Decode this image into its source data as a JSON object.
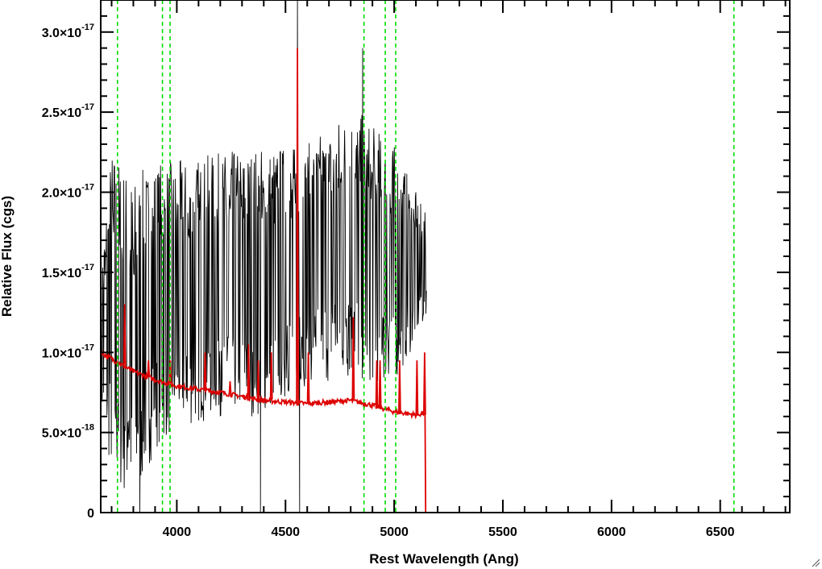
{
  "chart_data": {
    "type": "line",
    "xlabel": "Rest Wavelength (Ang)",
    "ylabel": "Relative Flux (cgs)",
    "xlim": [
      3650,
      6820
    ],
    "ylim": [
      0,
      3.2e-17
    ],
    "x_ticks": [
      {
        "value": 4000,
        "label": "4000"
      },
      {
        "value": 4500,
        "label": "4500"
      },
      {
        "value": 5000,
        "label": "5000"
      },
      {
        "value": 5500,
        "label": "5500"
      },
      {
        "value": 6000,
        "label": "6000"
      },
      {
        "value": 6500,
        "label": "6500"
      }
    ],
    "y_ticks": [
      {
        "value": 0,
        "mantissa": "0",
        "exp": ""
      },
      {
        "value": 5e-18,
        "mantissa": "5.0×10",
        "exp": "-18"
      },
      {
        "value": 1e-17,
        "mantissa": "1.0×10",
        "exp": "-17"
      },
      {
        "value": 1.5e-17,
        "mantissa": "1.5×10",
        "exp": "-17"
      },
      {
        "value": 2e-17,
        "mantissa": "2.0×10",
        "exp": "-17"
      },
      {
        "value": 2.5e-17,
        "mantissa": "2.5×10",
        "exp": "-17"
      },
      {
        "value": 3e-17,
        "mantissa": "3.0×10",
        "exp": "-17"
      }
    ],
    "grid": false,
    "vlines": {
      "color": "#00dd00",
      "style": "dashed",
      "x": [
        3727,
        3934,
        3969,
        4861,
        4959,
        5007,
        6563
      ]
    },
    "series": [
      {
        "color": "#000000",
        "style": "noisy spectrum",
        "x_range": [
          3650,
          5150
        ],
        "envelope_x": [
          3650,
          3700,
          3800,
          3900,
          4000,
          4200,
          4400,
          4600,
          4800,
          5000,
          5150
        ],
        "envelope_low": [
          6e-18,
          2e-18,
          0.0,
          4e-18,
          5e-18,
          6e-18,
          6e-18,
          8e-18,
          8e-18,
          8e-18,
          1.2e-17
        ],
        "envelope_high": [
          1.6e-17,
          2.3e-17,
          2.1e-17,
          2.2e-17,
          2.2e-17,
          2.25e-17,
          2.3e-17,
          2.3e-17,
          2.55e-17,
          2.3e-17,
          1.85e-17
        ],
        "spikes": [
          {
            "x": 3830,
            "y": 0.0
          },
          {
            "x": 4385,
            "y": 0.0
          },
          {
            "x": 4555,
            "y": 3.2e-17
          },
          {
            "x": 4565,
            "y": 0.0
          },
          {
            "x": 4855,
            "y": 2.9e-17
          }
        ]
      },
      {
        "color": "#dd0000",
        "style": "model spectrum",
        "continuum_x": [
          3650,
          3800,
          3900,
          4000,
          4200,
          4400,
          4600,
          4800,
          4900,
          5000,
          5100,
          5140,
          5145,
          6820
        ],
        "continuum_y": [
          1e-17,
          8.8e-18,
          8.3e-18,
          7.9e-18,
          7.5e-18,
          7e-18,
          6.8e-18,
          7e-18,
          6.7e-18,
          6.3e-18,
          6.1e-18,
          6.2e-18,
          0.0,
          0.0
        ],
        "lines": [
          {
            "x": 3760,
            "y": 1.3e-17
          },
          {
            "x": 3870,
            "y": 9.5e-18
          },
          {
            "x": 3970,
            "y": 9.5e-18
          },
          {
            "x": 4130,
            "y": 1e-17
          },
          {
            "x": 4245,
            "y": 8.2e-18
          },
          {
            "x": 4330,
            "y": 1.05e-17
          },
          {
            "x": 4375,
            "y": 9.5e-18
          },
          {
            "x": 4435,
            "y": 1e-17
          },
          {
            "x": 4555,
            "y": 2.9e-17
          },
          {
            "x": 4605,
            "y": 1e-17
          },
          {
            "x": 4812,
            "y": 1.22e-17
          },
          {
            "x": 4920,
            "y": 9.5e-18
          },
          {
            "x": 4935,
            "y": 9.5e-18
          },
          {
            "x": 5025,
            "y": 9.5e-18
          },
          {
            "x": 5105,
            "y": 9.5e-18
          },
          {
            "x": 5140,
            "y": 1e-17
          }
        ]
      }
    ]
  }
}
